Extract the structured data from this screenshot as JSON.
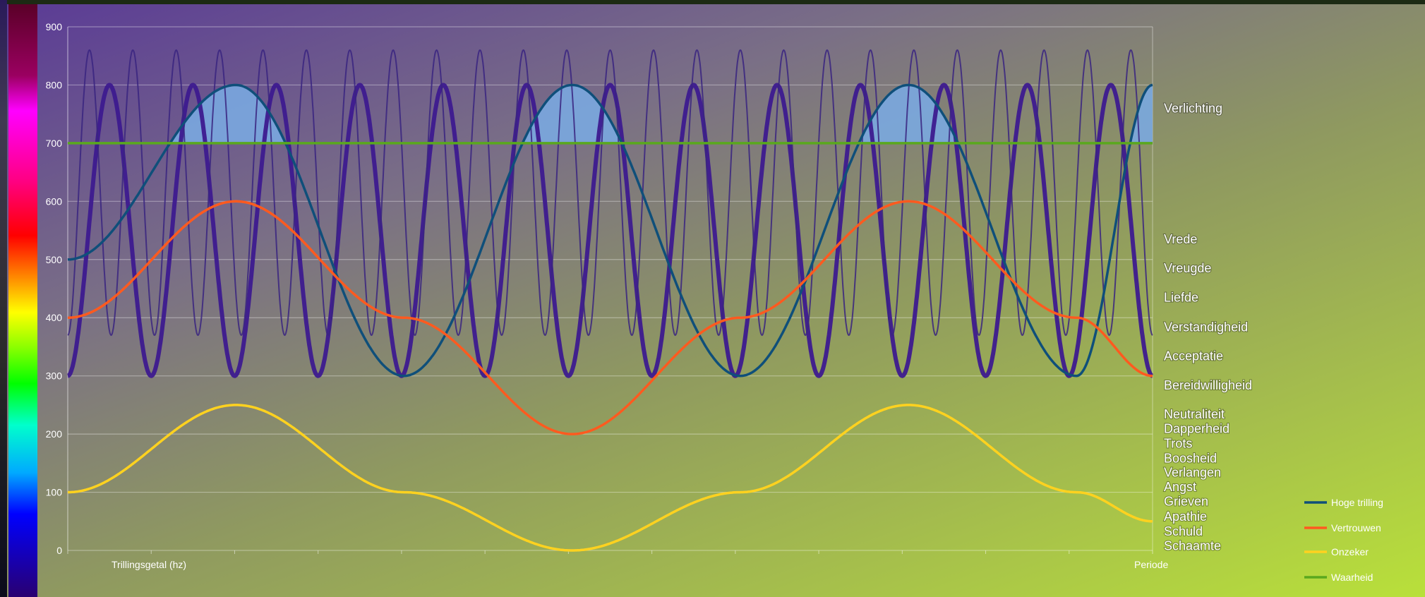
{
  "chart_data": {
    "type": "line",
    "x_axis_label": "Trillingsgetal (hz)",
    "x_axis_end_label": "Periode",
    "y_ticks": [
      0,
      100,
      200,
      300,
      400,
      500,
      600,
      700,
      800,
      900
    ],
    "ylim": [
      0,
      900
    ],
    "grid": true,
    "emotion_labels": [
      {
        "label": "Verlichting",
        "value": 760
      },
      {
        "label": "Vrede",
        "value": 535
      },
      {
        "label": "Vreugde",
        "value": 485
      },
      {
        "label": "Liefde",
        "value": 435
      },
      {
        "label": "Verstandigheid",
        "value": 384
      },
      {
        "label": "Acceptatie",
        "value": 334
      },
      {
        "label": "Bereidwilligheid",
        "value": 284
      },
      {
        "label": "Neutraliteit",
        "value": 234
      },
      {
        "label": "Dapperheid",
        "value": 209
      },
      {
        "label": "Trots",
        "value": 184
      },
      {
        "label": "Boosheid",
        "value": 158
      },
      {
        "label": "Verlangen",
        "value": 134
      },
      {
        "label": "Angst",
        "value": 109
      },
      {
        "label": "Grieven",
        "value": 84
      },
      {
        "label": "Apathie",
        "value": 58
      },
      {
        "label": "Schuld",
        "value": 33
      },
      {
        "label": "Schaamte",
        "value": 8
      }
    ],
    "series": [
      {
        "name": "Hoge trilling",
        "color": "#0f4f7a",
        "x": [
          0,
          0.155,
          0.31,
          0.465,
          0.62,
          0.775,
          0.93,
          1.0
        ],
        "y": [
          500,
          800,
          300,
          800,
          300,
          800,
          300,
          800
        ]
      },
      {
        "name": "Vertrouwen",
        "color": "#ff5a1f",
        "x": [
          0,
          0.155,
          0.31,
          0.465,
          0.62,
          0.775,
          0.93,
          1.0
        ],
        "y": [
          400,
          600,
          400,
          200,
          400,
          600,
          400,
          300
        ]
      },
      {
        "name": "Onzeker",
        "color": "#ffd21f",
        "x": [
          0,
          0.155,
          0.31,
          0.465,
          0.62,
          0.775,
          0.93,
          1.0
        ],
        "y": [
          100,
          250,
          100,
          0,
          100,
          250,
          100,
          50
        ]
      },
      {
        "name": "Waarheid",
        "color": "#5aa81e",
        "x": [
          0,
          1.0
        ],
        "y": [
          700,
          700
        ]
      }
    ],
    "unlabeled_series": [
      {
        "color": "#3d1a8f",
        "cycles": 13,
        "ymin": 300,
        "ymax": 800
      },
      {
        "color": "#3a2580",
        "cycles": 25,
        "ymin": 370,
        "ymax": 860
      }
    ],
    "threshold_fill": {
      "color": "#7aa8e0",
      "above": 700
    }
  }
}
